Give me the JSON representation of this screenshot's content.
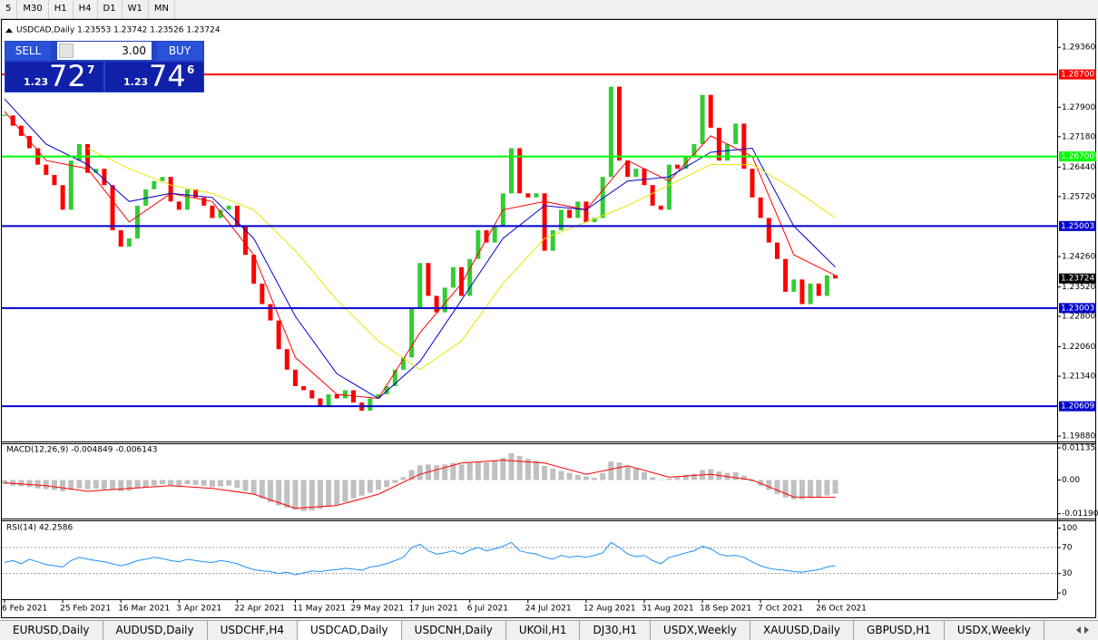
{
  "toolbar": {
    "timeframes": [
      "5",
      "M30",
      "H1",
      "H4",
      "D1",
      "W1",
      "MN"
    ]
  },
  "trade_panel": {
    "sell": "SELL",
    "buy": "BUY",
    "lot": "3.00",
    "bid": {
      "big": "1.23",
      "main": "72",
      "sup": "7"
    },
    "ask": {
      "big": "1.23",
      "main": "74",
      "sup": "6"
    }
  },
  "chart_data": [
    {
      "type": "candlestick",
      "title": "USDCAD,Daily 1.23553 1.23742 1.23526 1.23724",
      "up_color": "#32cd32",
      "down_color": "#ff0000",
      "values": [
        1.277,
        1.2745,
        1.272,
        1.269,
        1.265,
        1.2625,
        1.26,
        1.254,
        1.266,
        1.27,
        1.263,
        1.264,
        1.26,
        1.249,
        1.245,
        1.247,
        1.255,
        1.259,
        1.261,
        1.262,
        1.256,
        1.254,
        1.259,
        1.257,
        1.255,
        1.252,
        1.254,
        1.255,
        1.25,
        1.243,
        1.236,
        1.231,
        1.227,
        1.22,
        1.215,
        1.211,
        1.21,
        1.208,
        1.206,
        1.209,
        1.208,
        1.21,
        1.207,
        1.205,
        1.208,
        1.209,
        1.211,
        1.215,
        1.218,
        1.23,
        1.241,
        1.233,
        1.229,
        1.235,
        1.24,
        1.233,
        1.242,
        1.249,
        1.246,
        1.25,
        1.258,
        1.269,
        1.258,
        1.257,
        1.258,
        1.244,
        1.249,
        1.254,
        1.252,
        1.256,
        1.251,
        1.252,
        1.262,
        1.284,
        1.266,
        1.262,
        1.264,
        1.26,
        1.255,
        1.254,
        1.265,
        1.264,
        1.267,
        1.27,
        1.282,
        1.274,
        1.266,
        1.27,
        1.275,
        1.264,
        1.257,
        1.252,
        1.246,
        1.242,
        1.234,
        1.237,
        1.231,
        1.236,
        1.233,
        1.238,
        1.23724
      ],
      "xlim": [
        -0.33,
        126.7
      ],
      "xticks": [
        {
          "value": 0,
          "label": "6 Feb 2021"
        },
        {
          "value": 7,
          "label": "25 Feb 2021"
        },
        {
          "value": 14,
          "label": "16 Mar 2021"
        },
        {
          "value": 21,
          "label": "3 Apr 2021"
        },
        {
          "value": 28,
          "label": "22 Apr 2021"
        },
        {
          "value": 35,
          "label": "11 May 2021"
        },
        {
          "value": 42,
          "label": "29 May 2021"
        },
        {
          "value": 49,
          "label": "17 Jun 2021"
        },
        {
          "value": 56,
          "label": "6 Jul 2021"
        },
        {
          "value": 63,
          "label": "24 Jul 2021"
        },
        {
          "value": 70,
          "label": "12 Aug 2021"
        },
        {
          "value": 77,
          "label": "31 Aug 2021"
        },
        {
          "value": 84,
          "label": "18 Sep 2021"
        },
        {
          "value": 91,
          "label": "7 Oct 2021"
        },
        {
          "value": 98,
          "label": "26 Oct 2021"
        }
      ],
      "ylim": [
        1.1975,
        1.3005
      ],
      "yticks": [
        {
          "value": 1.2936,
          "label": "1.29360"
        },
        {
          "value": 1.279,
          "label": "1.27900"
        },
        {
          "value": 1.2718,
          "label": "1.27180"
        },
        {
          "value": 1.2644,
          "label": "1.26440"
        },
        {
          "value": 1.2572,
          "label": "1.25720"
        },
        {
          "value": 1.2426,
          "label": "1.24260"
        },
        {
          "value": 1.2352,
          "label": "1.23520"
        },
        {
          "value": 1.228,
          "label": "1.22800"
        },
        {
          "value": 1.2206,
          "label": "1.22060"
        },
        {
          "value": 1.2134,
          "label": "1.21340"
        },
        {
          "value": 1.1988,
          "label": "1.19880"
        }
      ],
      "levels": [
        {
          "value": 1.287,
          "label": "1.28700",
          "color": "#ff0000"
        },
        {
          "value": 1.267,
          "label": "1.26700",
          "color": "#00ff00"
        },
        {
          "value": 1.25003,
          "label": "1.25003",
          "color": "#0000cd"
        },
        {
          "value": 1.23003,
          "label": "1.23003",
          "color": "#0000cd"
        },
        {
          "value": 1.20609,
          "label": "1.20609",
          "color": "#0000cd"
        }
      ],
      "last_price": {
        "value": 1.23724,
        "label": "1.23724"
      },
      "overlay_x": [
        0,
        5,
        10,
        15,
        20,
        25,
        30,
        35,
        40,
        45,
        50,
        55,
        60,
        65,
        70,
        75,
        80,
        85,
        90,
        95,
        100
      ],
      "overlays": [
        {
          "color": "#ff0000",
          "values": [
            1.278,
            1.266,
            1.264,
            1.251,
            1.258,
            1.256,
            1.243,
            1.218,
            1.209,
            1.208,
            1.224,
            1.236,
            1.254,
            1.256,
            1.254,
            1.266,
            1.261,
            1.272,
            1.267,
            1.243,
            1.238
          ]
        },
        {
          "color": "#0000cd",
          "values": [
            1.281,
            1.27,
            1.265,
            1.256,
            1.258,
            1.257,
            1.247,
            1.228,
            1.214,
            1.208,
            1.217,
            1.232,
            1.247,
            1.255,
            1.254,
            1.261,
            1.262,
            1.268,
            1.269,
            1.25,
            1.24
          ]
        },
        {
          "color": "#e6e600",
          "values": [
            null,
            null,
            1.269,
            1.264,
            1.26,
            1.258,
            1.254,
            1.244,
            1.232,
            1.222,
            1.215,
            1.222,
            1.236,
            1.247,
            1.251,
            1.255,
            1.26,
            1.265,
            1.265,
            1.259,
            1.252
          ]
        }
      ]
    },
    {
      "type": "bar",
      "title": "MACD(12,26,9) -0.004849 -0.006143",
      "color": "#c0c0c0",
      "values": [
        -0.0015,
        -0.002,
        -0.0022,
        -0.0025,
        -0.003,
        -0.0032,
        -0.0035,
        -0.004,
        -0.0035,
        -0.003,
        -0.0032,
        -0.003,
        -0.0033,
        -0.0035,
        -0.004,
        -0.0038,
        -0.003,
        -0.0025,
        -0.002,
        -0.0015,
        -0.0018,
        -0.002,
        -0.0015,
        -0.0018,
        -0.002,
        -0.0025,
        -0.0022,
        -0.002,
        -0.0028,
        -0.0038,
        -0.005,
        -0.0065,
        -0.0078,
        -0.009,
        -0.0098,
        -0.0105,
        -0.011,
        -0.0108,
        -0.0102,
        -0.0095,
        -0.0088,
        -0.0078,
        -0.0065,
        -0.0055,
        -0.0045,
        -0.0035,
        -0.0025,
        -0.001,
        0.001,
        0.0035,
        0.0052,
        0.0055,
        0.0052,
        0.0055,
        0.006,
        0.0055,
        0.006,
        0.0065,
        0.0062,
        0.0068,
        0.0078,
        0.0095,
        0.0085,
        0.0075,
        0.0068,
        0.005,
        0.004,
        0.0032,
        0.0025,
        0.0018,
        0.0012,
        0.0008,
        0.0025,
        0.0065,
        0.0062,
        0.0048,
        0.004,
        0.0028,
        0.001,
        -0.0002,
        0.0005,
        0.001,
        0.0018,
        0.0022,
        0.0035,
        0.0038,
        0.003,
        0.0025,
        0.0028,
        0.0015,
        -0.0005,
        -0.002,
        -0.0035,
        -0.005,
        -0.0062,
        -0.0068,
        -0.0068,
        -0.0065,
        -0.006,
        -0.0055,
        -0.004849
      ],
      "ylim": [
        -0.01362,
        0.01297
      ],
      "yticks": [
        {
          "value": 0.01135,
          "label": "0.01135"
        },
        {
          "value": 0,
          "label": "0.00"
        },
        {
          "value": -0.011904,
          "label": "-0.011904"
        }
      ],
      "signal": {
        "color": "#ff0000",
        "values": [
          -0.001,
          -0.002,
          -0.004,
          -0.003,
          -0.002,
          -0.003,
          -0.005,
          -0.01,
          -0.009,
          -0.005,
          0.002,
          0.006,
          0.007,
          0.006,
          0.002,
          0.005,
          0.001,
          0.002,
          0.0,
          -0.006,
          -0.006143
        ]
      }
    },
    {
      "type": "line",
      "title": "RSI(14) 42.2586",
      "color": "#1e90ff",
      "values": [
        47,
        50,
        45,
        52,
        48,
        44,
        42,
        40,
        50,
        55,
        52,
        50,
        48,
        45,
        42,
        45,
        50,
        52,
        55,
        53,
        50,
        48,
        52,
        50,
        48,
        47,
        50,
        48,
        45,
        40,
        36,
        34,
        33,
        30,
        32,
        28,
        31,
        34,
        33,
        35,
        36,
        38,
        37,
        35,
        40,
        42,
        45,
        50,
        55,
        70,
        75,
        65,
        60,
        62,
        65,
        60,
        66,
        70,
        65,
        68,
        72,
        78,
        65,
        62,
        60,
        55,
        52,
        58,
        55,
        57,
        55,
        58,
        62,
        78,
        70,
        60,
        56,
        58,
        50,
        45,
        55,
        58,
        62,
        65,
        72,
        68,
        60,
        57,
        58,
        55,
        48,
        42,
        38,
        36,
        35,
        33,
        32,
        34,
        36,
        40,
        42.2586
      ],
      "ylim": [
        -9.6,
        112
      ],
      "yticks": [
        100,
        70,
        30,
        0
      ],
      "dotted_levels": [
        70,
        30
      ]
    }
  ],
  "tabs": [
    "EURUSD,Daily",
    "AUDUSD,Daily",
    "USDCHF,H4",
    "USDCAD,Daily",
    "USDCNH,Daily",
    "UKOil,H1",
    "DJ30,H1",
    "USDX,Weekly",
    "XAUUSD,Daily",
    "GBPUSD,H1",
    "USDX,Weekly"
  ]
}
